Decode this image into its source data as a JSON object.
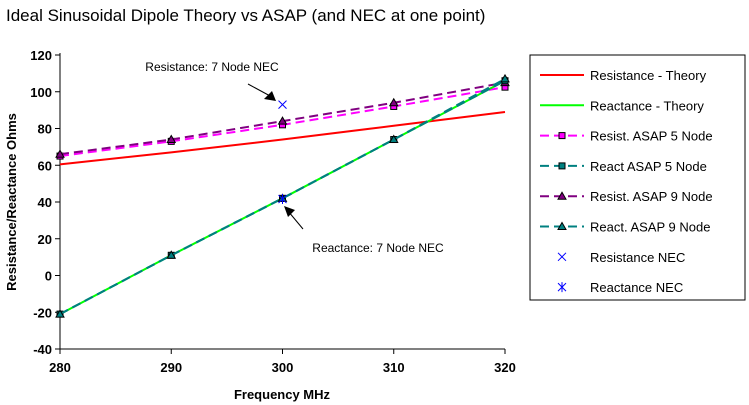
{
  "chart_data": {
    "type": "line",
    "title": "Ideal Sinusoidal Dipole Theory vs ASAP (and NEC at one point)",
    "xlabel": "Frequency MHz",
    "ylabel": "Resistance/Reactance Ohms",
    "xlim": [
      280,
      320
    ],
    "ylim": [
      -40,
      120
    ],
    "xticks": [
      280,
      290,
      300,
      310,
      320
    ],
    "yticks": [
      -40,
      -20,
      0,
      20,
      40,
      60,
      80,
      100,
      120
    ],
    "grid": false,
    "legend_position": "right",
    "x": [
      280,
      290,
      300,
      310,
      320
    ],
    "series": [
      {
        "name": "Resistance - Theory",
        "color": "#ff0000",
        "dash": false,
        "marker": "none",
        "values": [
          60.5,
          67,
          74,
          81.5,
          89
        ]
      },
      {
        "name": "Reactance - Theory",
        "color": "#00ff00",
        "dash": false,
        "marker": "none",
        "values": [
          -21,
          11,
          42,
          74,
          106
        ]
      },
      {
        "name": "Resist. ASAP 5 Node",
        "color": "#ff00ff",
        "dash": true,
        "marker": "square",
        "values": [
          65,
          73,
          82,
          92,
          102.5
        ]
      },
      {
        "name": "React ASAP 5 Node",
        "color": "#008080",
        "dash": true,
        "marker": "square",
        "values": [
          -21,
          11,
          42,
          74,
          106
        ]
      },
      {
        "name": "Resist. ASAP 9 Node",
        "color": "#800080",
        "dash": true,
        "marker": "triangle",
        "values": [
          66,
          74,
          84,
          94,
          105
        ]
      },
      {
        "name": "React. ASAP 9 Node",
        "color": "#008080",
        "dash": true,
        "marker": "triangle",
        "values": [
          -21,
          11,
          42,
          74,
          107
        ]
      },
      {
        "name": "Resistance NEC",
        "color": "#0000ff",
        "marker": "x",
        "points": [
          [
            300,
            93
          ]
        ]
      },
      {
        "name": "Reactance NEC",
        "color": "#0000ff",
        "marker": "asterisk",
        "points": [
          [
            300,
            41.6
          ]
        ]
      }
    ],
    "annotations": [
      {
        "text": "Resistance: 7 Node NEC",
        "x": 300,
        "y": 93
      },
      {
        "text": "Reactance: 7 Node NEC",
        "x": 300,
        "y": 41.6
      }
    ]
  }
}
